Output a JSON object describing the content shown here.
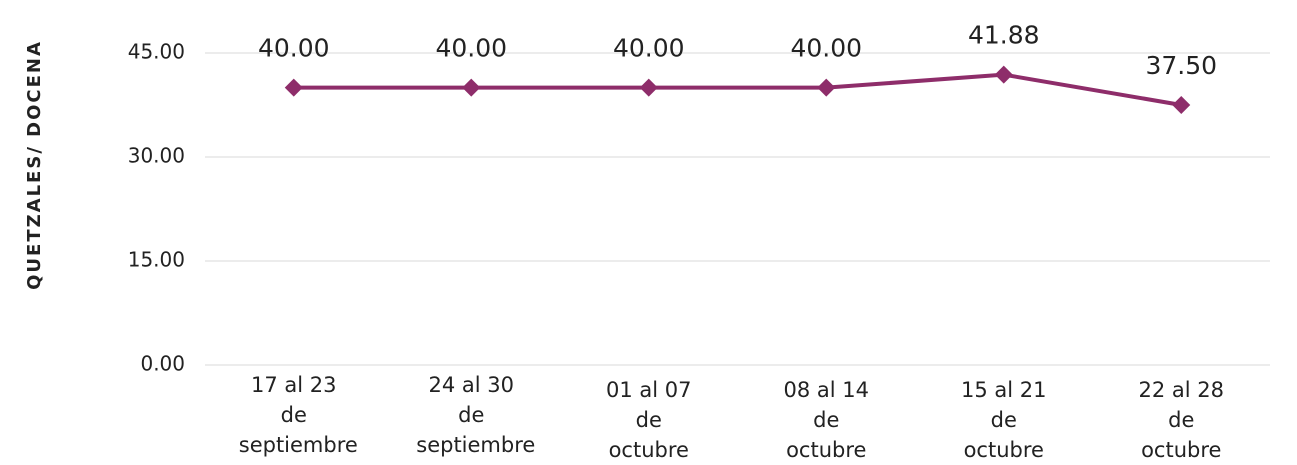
{
  "chart_data": {
    "type": "line",
    "y_label": "QUETZALES/ DOCENA",
    "categories": [
      "17 al 23 de septiembre",
      "24 al 30 de septiembre",
      "01 al 07 de octubre",
      "08 al 14 de octubre",
      "15 al 21 de octubre",
      "22 al 28 de octubre"
    ],
    "values": [
      40,
      40,
      40,
      40,
      41.88,
      37.5
    ],
    "value_labels": [
      "40.00",
      "40.00",
      "40.00",
      "40.00",
      "41.88",
      "37.50"
    ],
    "color": "#8e2d6a",
    "ylim": [
      0,
      45
    ],
    "yticks": [
      {
        "value": 0,
        "label": "0.00"
      },
      {
        "value": 15,
        "label": "15.00"
      },
      {
        "value": 30,
        "label": "30.00"
      },
      {
        "value": 45,
        "label": "45.00"
      }
    ],
    "grid": true
  }
}
